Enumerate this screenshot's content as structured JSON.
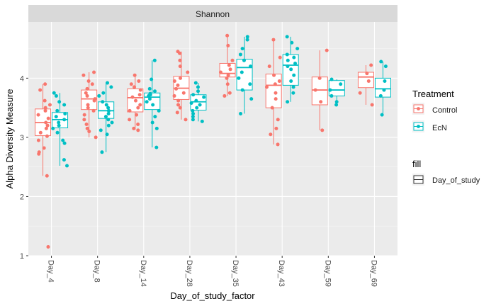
{
  "chart_data": {
    "type": "boxplot",
    "facet_label": "Shannon",
    "xlabel": "Day_of_study_factor",
    "ylabel": "Alpha Diversity Measure",
    "categories": [
      "Day_4",
      "Day_8",
      "Day_14",
      "Day_28",
      "Day_35",
      "Day_43",
      "Day_59",
      "Day_69"
    ],
    "ylim": [
      1,
      4.95
    ],
    "y_ticks": [
      1,
      2,
      3,
      4
    ],
    "grid": true,
    "legend_position": "right",
    "legend": {
      "color_title": "Treatment",
      "fill_title": "fill",
      "fill_entry": "Day_of_study"
    },
    "series": [
      {
        "name": "Control",
        "color": "#F8766D",
        "boxes": [
          {
            "whisker_low": 2.35,
            "q1": 3.03,
            "median": 3.25,
            "q3": 3.48,
            "whisker_high": 3.9
          },
          {
            "whisker_low": 3.0,
            "q1": 3.47,
            "median": 3.65,
            "q3": 3.8,
            "whisker_high": 4.1
          },
          {
            "whisker_low": 3.13,
            "q1": 3.43,
            "median": 3.67,
            "q3": 3.82,
            "whisker_high": 4.05
          },
          {
            "whisker_low": 3.3,
            "q1": 3.64,
            "median": 3.83,
            "q3": 4.03,
            "whisker_high": 4.45
          },
          {
            "whisker_low": 3.7,
            "q1": 4.02,
            "median": 4.08,
            "q3": 4.25,
            "whisker_high": 4.73
          },
          {
            "whisker_low": 2.88,
            "q1": 3.5,
            "median": 3.88,
            "q3": 4.07,
            "whisker_high": 4.65
          },
          {
            "whisker_low": 3.12,
            "q1": 3.55,
            "median": 3.8,
            "q3": 4.02,
            "whisker_high": 4.47
          },
          {
            "whisker_low": 3.55,
            "q1": 3.84,
            "median": 4.02,
            "q3": 4.1,
            "whisker_high": 4.22
          }
        ],
        "points": [
          [
            3.9,
            3.8,
            3.62,
            3.55,
            3.5,
            3.45,
            3.38,
            3.32,
            3.25,
            3.2,
            3.15,
            3.08,
            3.02,
            2.95,
            2.82,
            2.75,
            2.72,
            2.35,
            1.15
          ],
          [
            4.1,
            4.05,
            3.95,
            3.9,
            3.82,
            3.75,
            3.7,
            3.65,
            3.62,
            3.55,
            3.5,
            3.45,
            3.38,
            3.3,
            3.22,
            3.15,
            3.1,
            3.0
          ],
          [
            4.05,
            3.95,
            3.9,
            3.85,
            3.8,
            3.72,
            3.68,
            3.62,
            3.55,
            3.5,
            3.45,
            3.38,
            3.3,
            3.22,
            3.15,
            3.12
          ],
          [
            4.45,
            4.42,
            4.3,
            4.2,
            4.1,
            4.0,
            3.95,
            3.88,
            3.82,
            3.75,
            3.7,
            3.62,
            3.55,
            3.5,
            3.42,
            3.3
          ],
          [
            4.72,
            4.55,
            4.3,
            4.22,
            4.15,
            4.1,
            4.05,
            4.0,
            3.9,
            3.75,
            3.7
          ],
          [
            4.65,
            4.35,
            4.2,
            4.05,
            3.95,
            3.9,
            3.85,
            3.75,
            3.65,
            3.5,
            3.3,
            3.15,
            3.05,
            2.88
          ],
          [
            4.47,
            4.0,
            3.8,
            3.6,
            3.12
          ],
          [
            4.22,
            4.08,
            3.95,
            3.75,
            3.55
          ]
        ]
      },
      {
        "name": "EcN",
        "color": "#00BFC4",
        "boxes": [
          {
            "whisker_low": 2.52,
            "q1": 3.16,
            "median": 3.3,
            "q3": 3.42,
            "whisker_high": 3.75
          },
          {
            "whisker_low": 2.75,
            "q1": 3.32,
            "median": 3.45,
            "q3": 3.6,
            "whisker_high": 3.92
          },
          {
            "whisker_low": 2.83,
            "q1": 3.47,
            "median": 3.68,
            "q3": 3.75,
            "whisker_high": 4.3
          },
          {
            "whisker_low": 3.27,
            "q1": 3.46,
            "median": 3.6,
            "q3": 3.72,
            "whisker_high": 3.92
          },
          {
            "whisker_low": 3.4,
            "q1": 3.8,
            "median": 4.18,
            "q3": 4.32,
            "whisker_high": 4.7
          },
          {
            "whisker_low": 3.6,
            "q1": 3.88,
            "median": 4.22,
            "q3": 4.4,
            "whisker_high": 4.7
          },
          {
            "whisker_low": 3.55,
            "q1": 3.7,
            "median": 3.8,
            "q3": 3.96,
            "whisker_high": 3.98
          },
          {
            "whisker_low": 3.38,
            "q1": 3.68,
            "median": 3.82,
            "q3": 4.0,
            "whisker_high": 4.28
          }
        ],
        "points": [
          [
            3.75,
            3.7,
            3.6,
            3.55,
            3.45,
            3.4,
            3.35,
            3.3,
            3.25,
            3.2,
            3.15,
            3.08,
            2.95,
            2.9,
            2.62,
            2.52
          ],
          [
            3.92,
            3.85,
            3.75,
            3.7,
            3.6,
            3.55,
            3.5,
            3.45,
            3.4,
            3.35,
            3.3,
            3.25,
            3.2,
            3.12,
            3.05,
            2.75
          ],
          [
            4.3,
            3.98,
            3.82,
            3.78,
            3.74,
            3.72,
            3.7,
            3.65,
            3.6,
            3.55,
            3.45,
            3.35,
            3.25,
            3.15,
            2.83
          ],
          [
            3.92,
            3.85,
            3.78,
            3.72,
            3.68,
            3.62,
            3.58,
            3.55,
            3.5,
            3.45,
            3.4,
            3.35,
            3.3,
            3.27
          ],
          [
            4.7,
            4.65,
            4.5,
            4.4,
            4.3,
            4.2,
            4.1,
            4.0,
            3.9,
            3.8,
            3.65,
            3.4
          ],
          [
            4.7,
            4.6,
            4.5,
            4.4,
            4.35,
            4.3,
            4.25,
            4.2,
            4.15,
            4.05,
            3.95,
            3.85,
            3.75,
            3.6
          ],
          [
            3.98,
            3.9,
            3.8,
            3.7,
            3.6,
            3.55
          ],
          [
            4.28,
            4.2,
            3.95,
            3.8,
            3.7,
            3.38
          ]
        ]
      }
    ]
  }
}
